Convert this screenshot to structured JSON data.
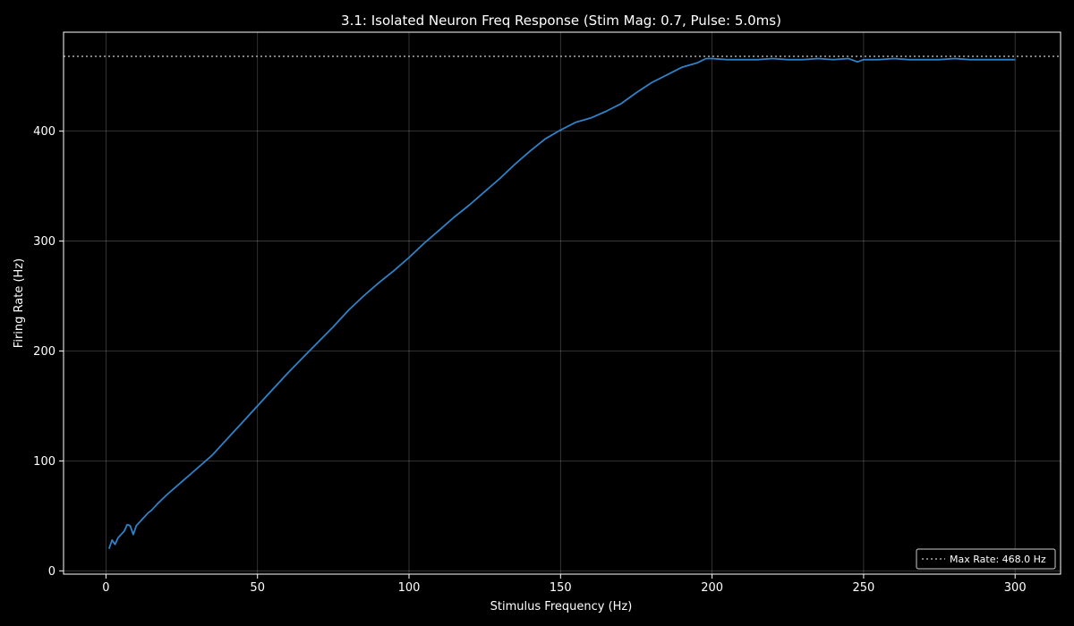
{
  "chart_data": {
    "type": "line",
    "title": "3.1: Isolated Neuron Freq Response (Stim Mag: 0.7, Pulse: 5.0ms)",
    "xlabel": "Stimulus Frequency (Hz)",
    "ylabel": "Firing Rate (Hz)",
    "xlim": [
      -14,
      315
    ],
    "ylim": [
      -3,
      490
    ],
    "xticks": [
      0,
      50,
      100,
      150,
      200,
      250,
      300
    ],
    "yticks": [
      0,
      100,
      200,
      300,
      400
    ],
    "grid": true,
    "legend_position": "bottom-right",
    "series": [
      {
        "color": "#2f82c8",
        "x": [
          1,
          2,
          3,
          4,
          5,
          6,
          7,
          8,
          9,
          10,
          11,
          12,
          13,
          14,
          15,
          17,
          20,
          25,
          30,
          35,
          40,
          45,
          50,
          55,
          60,
          65,
          70,
          75,
          80,
          85,
          90,
          95,
          100,
          105,
          110,
          115,
          120,
          125,
          130,
          135,
          140,
          145,
          150,
          155,
          160,
          165,
          170,
          175,
          180,
          185,
          190,
          195,
          198,
          200,
          205,
          210,
          215,
          220,
          225,
          230,
          235,
          240,
          245,
          248,
          250,
          255,
          260,
          265,
          270,
          275,
          280,
          285,
          290,
          295,
          300
        ],
        "y": [
          20,
          28,
          24,
          30,
          33,
          36,
          42,
          41,
          33,
          41,
          44,
          47,
          50,
          53,
          55,
          61,
          69,
          81,
          93,
          105,
          120,
          135,
          150,
          165,
          180,
          194,
          208,
          222,
          237,
          250,
          262,
          273,
          285,
          298,
          310,
          322,
          333,
          345,
          357,
          370,
          382,
          393,
          401,
          408,
          412,
          418,
          425,
          435,
          444,
          451,
          458,
          462,
          466,
          466,
          465,
          465,
          465,
          466,
          465,
          465,
          466,
          465,
          466,
          463,
          465,
          465,
          466,
          465,
          465,
          465,
          466,
          465,
          465,
          465,
          465
        ]
      }
    ],
    "reference_line": {
      "label": "Max Rate: 468.0 Hz",
      "y": 468.0,
      "color": "#aaaaaa"
    }
  }
}
